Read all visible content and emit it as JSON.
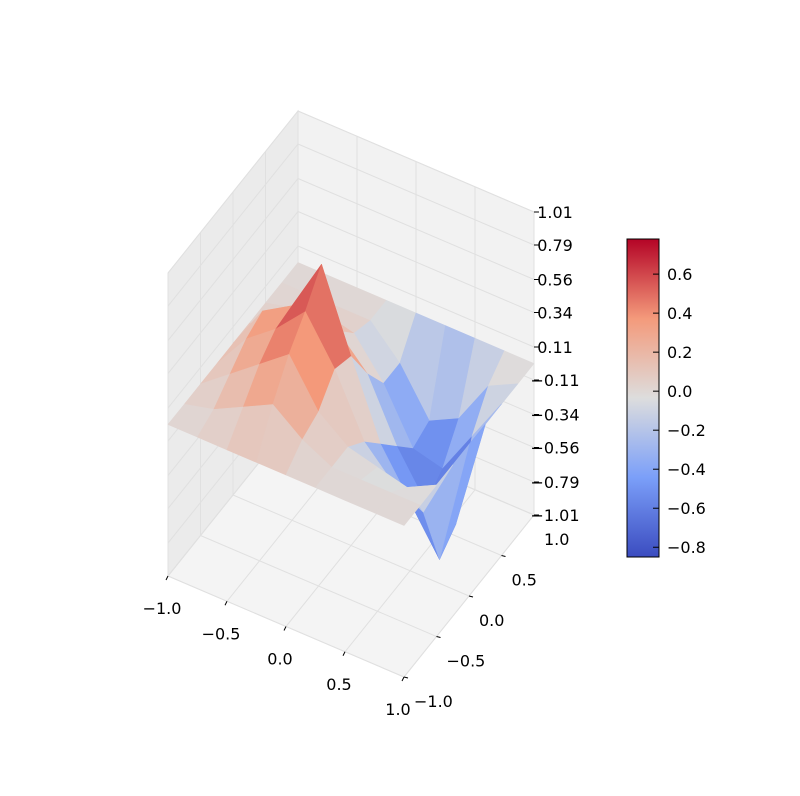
{
  "chart_data": {
    "type": "surface3d",
    "title": "",
    "x_ticks": [
      "−1.0",
      "−0.5",
      "0.0",
      "0.5",
      "1.0"
    ],
    "y_ticks": [
      "−1.0",
      "−0.5",
      "0.0",
      "0.5",
      "1.0"
    ],
    "z_ticks": [
      "−1.01",
      "−0.79",
      "−0.56",
      "−0.34",
      "−0.11",
      "0.11",
      "0.34",
      "0.56",
      "0.79",
      "1.01"
    ],
    "x_range": [
      -1.0,
      1.0
    ],
    "y_range": [
      -1.0,
      1.0
    ],
    "z_range": [
      -1.01,
      1.01
    ],
    "colormap": "coolwarm",
    "colorbar": {
      "ticks": [
        "0.6",
        "0.4",
        "0.2",
        "0.0",
        "−0.2",
        "−0.4",
        "−0.6",
        "−0.8"
      ],
      "range": [
        -0.85,
        0.78
      ]
    },
    "x": [
      -1.0,
      -0.75,
      -0.5,
      -0.25,
      0.0,
      0.25,
      0.5,
      0.75,
      1.0
    ],
    "y": [
      -1.0,
      -0.75,
      -0.5,
      -0.25,
      0.0,
      0.25,
      0.5,
      0.75,
      1.0
    ],
    "z": [
      [
        0.0,
        0.0,
        0.0,
        0.0,
        0.0,
        0.0,
        0.0,
        0.0,
        0.0
      ],
      [
        0.0,
        0.05,
        0.15,
        0.25,
        0.3,
        0.1,
        0.05,
        0.0,
        0.0
      ],
      [
        0.0,
        0.15,
        0.3,
        0.4,
        0.42,
        0.2,
        0.1,
        0.0,
        0.0
      ],
      [
        0.0,
        0.25,
        0.45,
        0.6,
        0.78,
        0.2,
        0.05,
        0.0,
        0.0
      ],
      [
        0.0,
        0.1,
        0.15,
        0.3,
        0.25,
        0.0,
        -0.2,
        -0.2,
        0.0
      ],
      [
        0.0,
        0.0,
        0.0,
        -0.1,
        -0.25,
        -0.4,
        -0.55,
        -0.5,
        0.0
      ],
      [
        0.0,
        0.0,
        -0.05,
        -0.3,
        -0.55,
        -0.7,
        -0.6,
        -0.4,
        0.0
      ],
      [
        0.0,
        0.0,
        -0.1,
        -0.4,
        -0.85,
        -0.75,
        -0.3,
        -0.1,
        0.0
      ],
      [
        0.0,
        0.0,
        0.0,
        0.0,
        0.0,
        0.0,
        0.0,
        0.0,
        0.0
      ]
    ]
  }
}
